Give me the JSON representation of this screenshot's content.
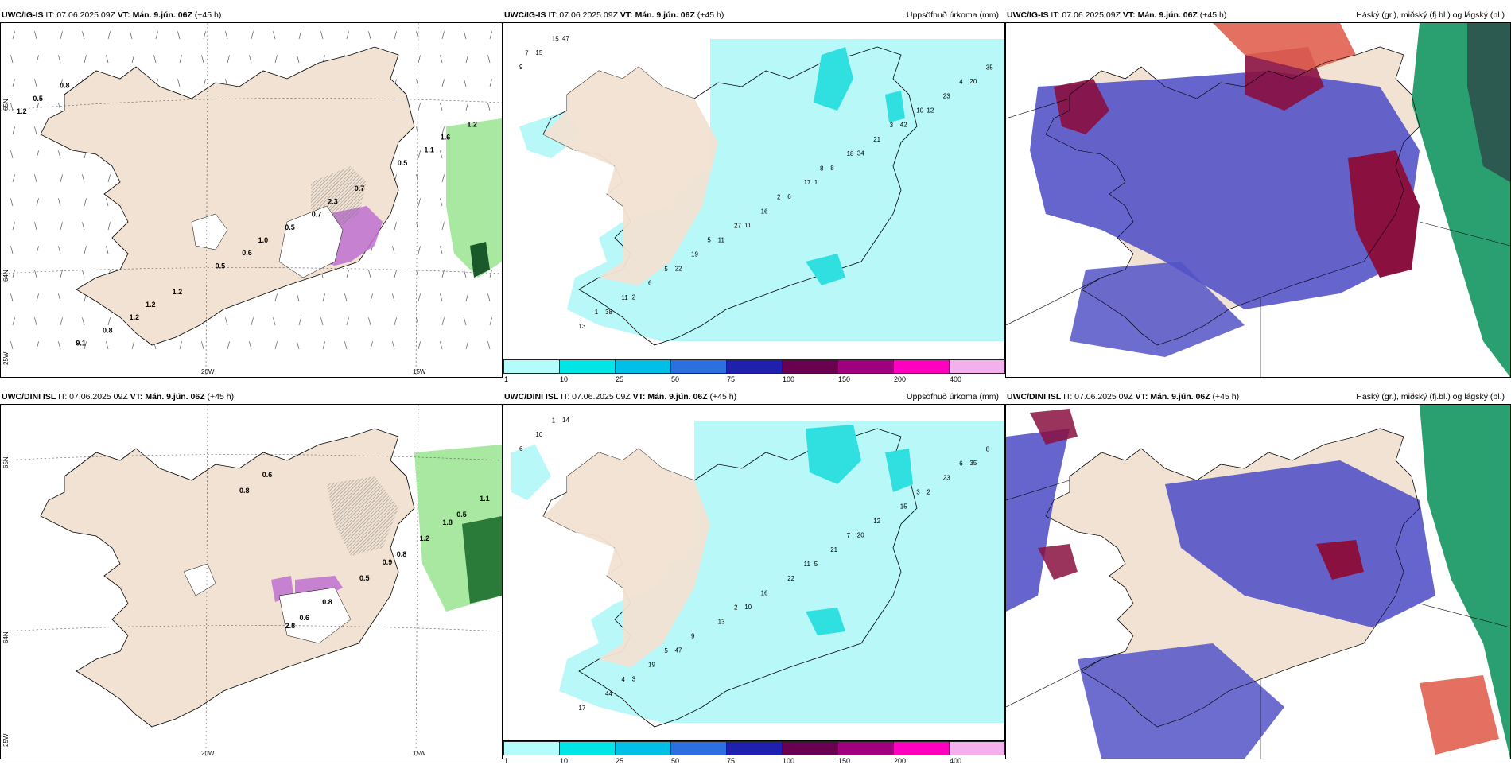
{
  "rows": [
    {
      "model": "UWC/IG-IS",
      "it": "IT: 07.06.2025 09Z",
      "vt_label": "VT:",
      "vt": "Mán. 9.jún. 06Z",
      "lead": "(+45 h)",
      "wind_labels": [
        "1.2",
        "0.7",
        "1.2",
        "1.1",
        "0.6",
        "0.8",
        "0.7",
        "1.2",
        "1.2",
        "0.5",
        "0.8",
        "0.5",
        "0.5",
        "0.5",
        "2.3",
        "1.2",
        "1.6",
        "1.0",
        "9.1"
      ],
      "precip_labels": [
        "9",
        "1",
        "2",
        "12",
        "11",
        "47",
        "34",
        "22",
        "20",
        "6",
        "38",
        "42",
        "11",
        "15",
        "8",
        "6",
        "23",
        "16",
        "13",
        "21",
        "19",
        "35",
        "17",
        "11",
        "10",
        "27",
        "15",
        "18",
        "5",
        "4",
        "2",
        "1",
        "3",
        "5",
        "7",
        "8"
      ],
      "lat_label": "65N",
      "lat_label2": "64N",
      "lon_label": "20W",
      "lon_label2": "15W",
      "lon_label3": "25W"
    },
    {
      "model": "UWC/DINI ISL",
      "it": "IT: 07.06.2025 09Z",
      "vt_label": "VT:",
      "vt": "Mán. 9.jún. 06Z",
      "lead": "(+45 h)",
      "wind_labels": [
        "0.8",
        "0.8",
        "0.6",
        "0.5",
        "0.5",
        "0.6",
        "1.2",
        "0.8",
        "1.1",
        "0.9",
        "2.8",
        "1.8"
      ],
      "precip_labels": [
        "6",
        "5",
        "3",
        "2",
        "10",
        "14",
        "20",
        "47",
        "35",
        "22",
        "44",
        "15",
        "13",
        "10",
        "21",
        "19",
        "23",
        "16",
        "17",
        "12",
        "9",
        "8",
        "11",
        "4",
        "3",
        "2",
        "1",
        "7",
        "5",
        "6"
      ],
      "lat_label": "65N",
      "lat_label2": "64N",
      "lon_label": "20W",
      "lon_label2": "15W",
      "lon_label3": "25W"
    }
  ],
  "precip_title": "Uppsöfnuð úrkoma (mm)",
  "cloud_title": "Háský (gr.), miðský (fj.bl.) og lágský (bl.)",
  "colorbar": {
    "labels": [
      "1",
      "10",
      "25",
      "50",
      "75",
      "100",
      "150",
      "200",
      "400"
    ],
    "colors": [
      "#b4fcfc",
      "#00e6e6",
      "#00c0e8",
      "#2a70e0",
      "#2020b0",
      "#6a0050",
      "#a00080",
      "#ff00c0",
      "#f4b0ec"
    ]
  },
  "colors": {
    "land": "#f1e2d3",
    "precip_light": "#b8f8f8",
    "precip_mid": "#30e0e0",
    "cloud_low": "#5454c8",
    "cloud_high": "#8a1040",
    "cloud_mid": "#2aa070",
    "snow": "#c070d0",
    "rain_green": "#a8e8a0"
  }
}
